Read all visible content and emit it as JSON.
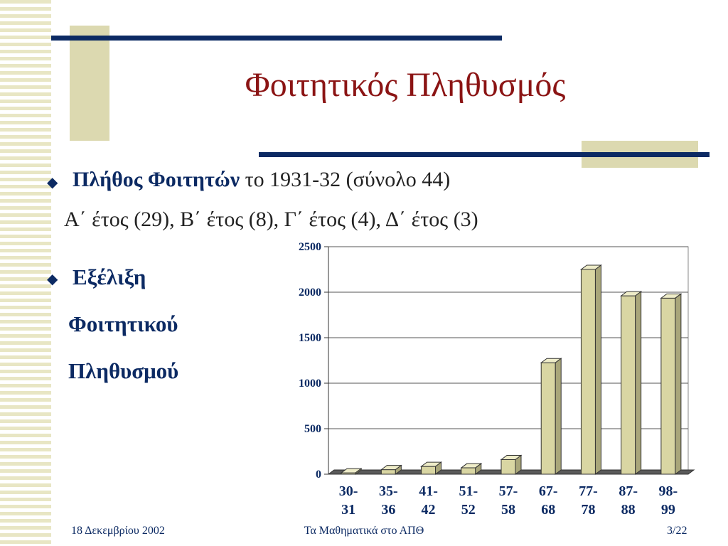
{
  "slide": {
    "title": "Φοιτητικός Πληθυσμός",
    "bullet1": {
      "bold": "Πλήθος Φοιτητών",
      "rest": " το 1931-32 (σύνολο 44)",
      "line2": "Α΄ έτος (29), Β΄ έτος (8), Γ΄ έτος (4), Δ΄ έτος (3)"
    },
    "bullet2": {
      "line1": "Εξέλιξη",
      "line2": "Φοιτητικού",
      "line3": "Πληθυσμού"
    },
    "footer": {
      "date": "18 Δεκεμβρίου 2002",
      "center": "Τα Μαθηματικά στο ΑΠΘ",
      "page": "3/22"
    },
    "colors": {
      "title": "#8b1414",
      "navy": "#0c2a63",
      "bar": "#d9d6a3"
    },
    "bullet_icon": "diamond-bullet-icon"
  },
  "chart_data": {
    "type": "bar",
    "categories": [
      "30-31",
      "35-36",
      "41-42",
      "51-52",
      "57-58",
      "67-68",
      "77-78",
      "87-88",
      "98-99"
    ],
    "values": [
      15,
      50,
      85,
      70,
      160,
      1225,
      2250,
      1960,
      1935
    ],
    "ylim": [
      0,
      2500
    ],
    "yticks": [
      0,
      500,
      1000,
      1500,
      2000,
      2500
    ],
    "grid": true,
    "legend": "none"
  }
}
